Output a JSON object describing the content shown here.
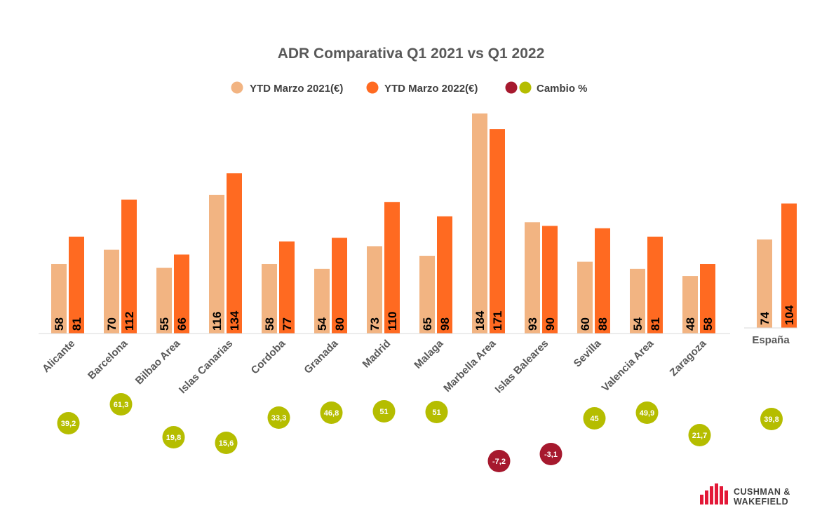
{
  "chart_data": {
    "type": "bar",
    "title": "ADR Comparativa Q1 2021 vs Q1 2022",
    "categories": [
      "Alicante",
      "Barcelona",
      "Bilbao Area",
      "Islas Canarias",
      "Cordoba",
      "Granada",
      "Madrid",
      "Malaga",
      "Marbella Area",
      "Islas Baleares",
      "Sevilla",
      "Valencia Area",
      "Zaragoza"
    ],
    "series": [
      {
        "name": "YTD Marzo 2021(€)",
        "values": [
          58,
          70,
          55,
          116,
          58,
          54,
          73,
          65,
          184,
          93,
          60,
          54,
          48
        ],
        "color": "#F2B482"
      },
      {
        "name": "YTD Marzo 2022(€)",
        "values": [
          81,
          112,
          66,
          134,
          77,
          80,
          110,
          98,
          171,
          90,
          88,
          81,
          58
        ],
        "color": "#FF6A21"
      }
    ],
    "change": {
      "name": "Cambio %",
      "values": [
        "39,2",
        "61,3",
        "19,8",
        "15,6",
        "33,3",
        "46,8",
        "51",
        "51",
        "-7,2",
        "-3,1",
        "45",
        "49,9",
        "21,7"
      ],
      "positive_color": "#B5BD00",
      "negative_color": "#A6192E"
    },
    "total": {
      "category": "España",
      "values": [
        74,
        104
      ],
      "change": "39,8"
    },
    "legend_position": "top-center",
    "grid": false
  },
  "branding": {
    "line1": "CUSHMAN &",
    "line2": "WAKEFIELD",
    "color": "#E31837"
  }
}
